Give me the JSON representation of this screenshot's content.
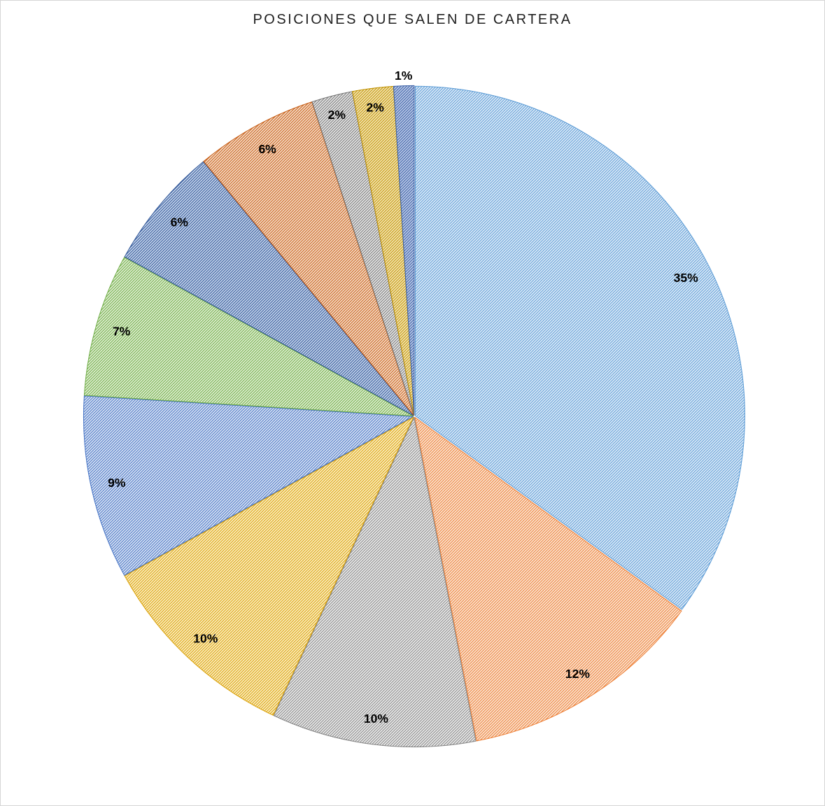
{
  "window": {
    "background": "#FFFFFF",
    "frame_border_color": "#D6D6D6"
  },
  "chart_data": {
    "type": "pie",
    "title": "POSICIONES QUE SALEN DE CARTERA",
    "title_color": "#1F1F1F",
    "unit": "%",
    "start_angle_deg": 0,
    "direction": "clockwise",
    "legend": "none",
    "pattern": "diagonal-hatch",
    "label_color": "#000000",
    "slices": [
      {
        "label": "35%",
        "value": 35,
        "color": "#5B9BD5",
        "tint": "#E3EEF9"
      },
      {
        "label": "12%",
        "value": 12,
        "color": "#ED7C31",
        "tint": "#FBEADC"
      },
      {
        "label": "10%",
        "value": 10,
        "color": "#848484",
        "tint": "#F0F0F0"
      },
      {
        "label": "10%",
        "value": 10,
        "color": "#D99E00",
        "tint": "#FDF2CE"
      },
      {
        "label": "9%",
        "value": 9,
        "color": "#4472C4",
        "tint": "#E0E8F6"
      },
      {
        "label": "7%",
        "value": 7,
        "color": "#70AD47",
        "tint": "#E3F0D7"
      },
      {
        "label": "6%",
        "value": 6,
        "color": "#2F5597",
        "tint": "#CBD9EE"
      },
      {
        "label": "6%",
        "value": 6,
        "color": "#C55A11",
        "tint": "#F8E3D1"
      },
      {
        "label": "2%",
        "value": 2,
        "color": "#757575",
        "tint": "#EBEBEB"
      },
      {
        "label": "2%",
        "value": 2,
        "color": "#BF9000",
        "tint": "#F6E9BC"
      },
      {
        "label": "1%",
        "value": 1,
        "color": "#3A5FA5",
        "tint": "#BFCDE9"
      }
    ]
  }
}
